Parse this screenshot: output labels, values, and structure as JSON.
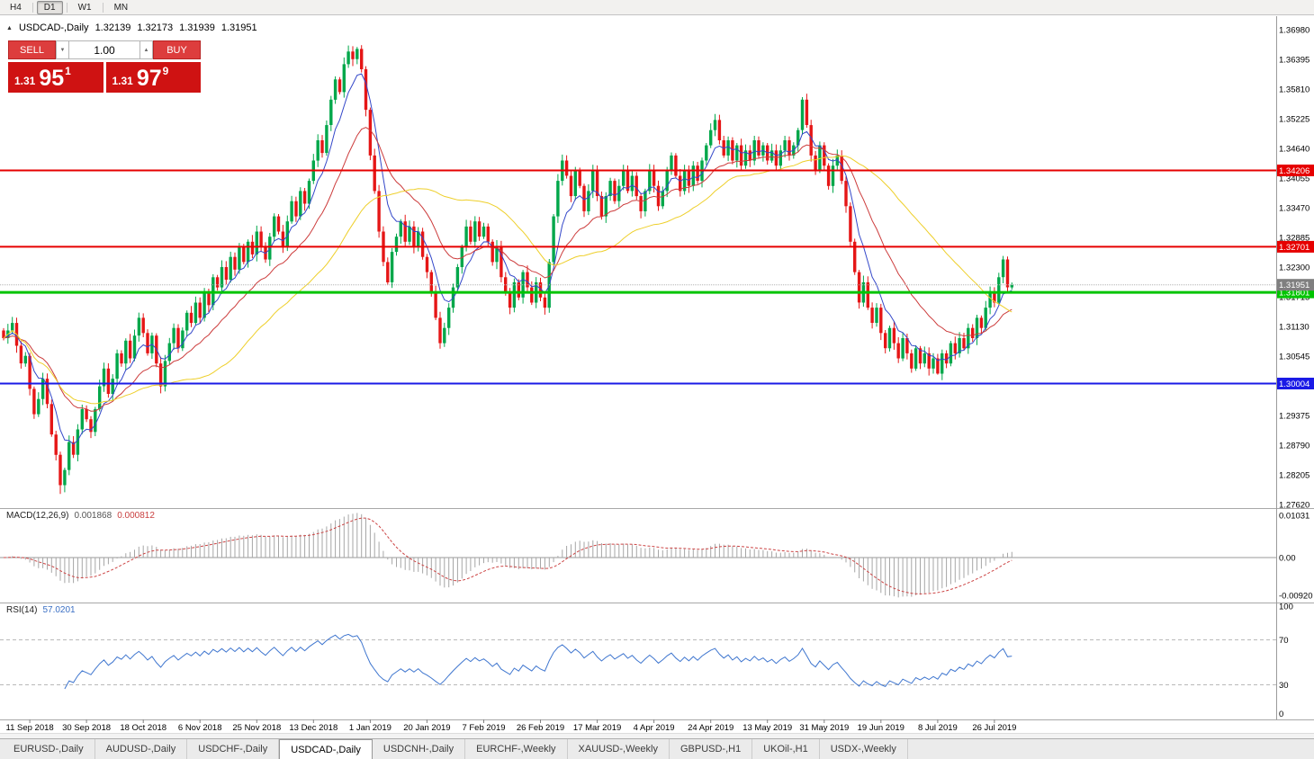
{
  "window": {
    "timeframes": [
      "H4",
      "D1",
      "W1",
      "MN"
    ],
    "active_timeframe": "D1"
  },
  "chart_header": {
    "symbol": "USDCAD-,Daily",
    "ohlc": {
      "open": "1.32139",
      "high": "1.32173",
      "low": "1.31939",
      "close": "1.31951"
    }
  },
  "trade_panel": {
    "sell_label": "SELL",
    "buy_label": "BUY",
    "volume": "1.00",
    "bid": {
      "big": "1.31",
      "pips": "95",
      "sup": "1"
    },
    "ask": {
      "big": "1.31",
      "pips": "97",
      "sup": "9"
    }
  },
  "tabs": {
    "items": [
      {
        "label": "EURUSD-,Daily",
        "active": false
      },
      {
        "label": "AUDUSD-,Daily",
        "active": false
      },
      {
        "label": "USDCHF-,Daily",
        "active": false
      },
      {
        "label": "USDCAD-,Daily",
        "active": true
      },
      {
        "label": "USDCNH-,Daily",
        "active": false
      },
      {
        "label": "EURCHF-,Weekly",
        "active": false
      },
      {
        "label": "XAUUSD-,Weekly",
        "active": false
      },
      {
        "label": "GBPUSD-,H1",
        "active": false
      },
      {
        "label": "UKOil-,H1",
        "active": false
      },
      {
        "label": "USDX-,Weekly",
        "active": false
      }
    ]
  },
  "chart_data": {
    "type": "candlestick",
    "symbol": "USDCAD-",
    "timeframe": "Daily",
    "price_axis": {
      "max": 1.3698,
      "min": 1.2762,
      "step": 0.00585,
      "labels": [
        "1.36980",
        "1.36395",
        "1.35810",
        "1.35225",
        "1.34640",
        "1.34055",
        "1.33470",
        "1.32885",
        "1.32300",
        "1.31715",
        "1.31130",
        "1.30545",
        "1.29960",
        "1.29375",
        "1.28790",
        "1.28205",
        "1.27620"
      ]
    },
    "x_labels": [
      {
        "i": 6,
        "t": "11 Sep 2018"
      },
      {
        "i": 19,
        "t": "30 Sep 2018"
      },
      {
        "i": 32,
        "t": "18 Oct 2018"
      },
      {
        "i": 45,
        "t": "6 Nov 2018"
      },
      {
        "i": 58,
        "t": "25 Nov 2018"
      },
      {
        "i": 71,
        "t": "13 Dec 2018"
      },
      {
        "i": 84,
        "t": "1 Jan 2019"
      },
      {
        "i": 97,
        "t": "20 Jan 2019"
      },
      {
        "i": 110,
        "t": "7 Feb 2019"
      },
      {
        "i": 123,
        "t": "26 Feb 2019"
      },
      {
        "i": 136,
        "t": "17 Mar 2019"
      },
      {
        "i": 149,
        "t": "4 Apr 2019"
      },
      {
        "i": 162,
        "t": "24 Apr 2019"
      },
      {
        "i": 175,
        "t": "13 May 2019"
      },
      {
        "i": 188,
        "t": "31 May 2019"
      },
      {
        "i": 201,
        "t": "19 Jun 2019"
      },
      {
        "i": 214,
        "t": "8 Jul 2019"
      },
      {
        "i": 227,
        "t": "26 Jul 2019"
      }
    ],
    "first_open": 1.3105,
    "closes": [
      1.309,
      1.3105,
      1.312,
      1.3075,
      1.304,
      1.3055,
      1.299,
      1.294,
      1.297,
      1.301,
      1.296,
      1.29,
      1.286,
      1.28,
      1.283,
      1.2885,
      1.286,
      1.291,
      1.295,
      1.293,
      1.2905,
      1.295,
      1.2995,
      1.303,
      1.298,
      1.301,
      1.306,
      1.304,
      1.3085,
      1.305,
      1.3095,
      1.313,
      1.31,
      1.306,
      1.3095,
      1.304,
      1.2995,
      1.3045,
      1.308,
      1.311,
      1.307,
      1.3105,
      1.314,
      1.312,
      1.316,
      1.313,
      1.318,
      1.3155,
      1.321,
      1.319,
      1.323,
      1.3205,
      1.325,
      1.3225,
      1.327,
      1.324,
      1.328,
      1.3255,
      1.33,
      1.327,
      1.3245,
      1.329,
      1.333,
      1.33,
      1.327,
      1.332,
      1.336,
      1.333,
      1.338,
      1.3355,
      1.34,
      1.344,
      1.348,
      1.3455,
      1.351,
      1.356,
      1.36,
      1.3575,
      1.363,
      1.3655,
      1.364,
      1.366,
      1.362,
      1.354,
      1.345,
      1.338,
      1.33,
      1.324,
      1.32,
      1.326,
      1.329,
      1.332,
      1.328,
      1.331,
      1.327,
      1.33,
      1.325,
      1.322,
      1.318,
      1.313,
      1.308,
      1.311,
      1.315,
      1.319,
      1.323,
      1.327,
      1.331,
      1.328,
      1.332,
      1.329,
      1.331,
      1.328,
      1.324,
      1.327,
      1.321,
      1.318,
      1.315,
      1.32,
      1.317,
      1.322,
      1.319,
      1.316,
      1.32,
      1.317,
      1.315,
      1.324,
      1.333,
      1.34,
      1.344,
      1.341,
      1.337,
      1.342,
      1.339,
      1.334,
      1.338,
      1.342,
      1.337,
      1.333,
      1.337,
      1.34,
      1.336,
      1.339,
      1.342,
      1.338,
      1.341,
      1.337,
      1.334,
      1.338,
      1.342,
      1.339,
      1.335,
      1.338,
      1.342,
      1.345,
      1.341,
      1.338,
      1.342,
      1.339,
      1.343,
      1.34,
      1.344,
      1.347,
      1.35,
      1.352,
      1.348,
      1.345,
      1.348,
      1.344,
      1.347,
      1.343,
      1.346,
      1.344,
      1.348,
      1.345,
      1.347,
      1.344,
      1.346,
      1.343,
      1.346,
      1.348,
      1.345,
      1.347,
      1.35,
      1.356,
      1.351,
      1.345,
      1.342,
      1.347,
      1.343,
      1.339,
      1.343,
      1.345,
      1.34,
      1.335,
      1.328,
      1.322,
      1.316,
      1.32,
      1.315,
      1.312,
      1.315,
      1.31,
      1.307,
      1.311,
      1.308,
      1.305,
      1.309,
      1.306,
      1.303,
      1.307,
      1.304,
      1.306,
      1.303,
      1.305,
      1.302,
      1.306,
      1.304,
      1.308,
      1.306,
      1.309,
      1.307,
      1.311,
      1.309,
      1.313,
      1.311,
      1.315,
      1.318,
      1.316,
      1.321,
      1.3245,
      1.319,
      1.31951
    ],
    "default_wick": 0.0013,
    "wick_overrides": {
      "13": {
        "l": 1.2783
      },
      "81": {
        "h": 1.3664
      },
      "100": {
        "l": 1.3069
      },
      "183": {
        "h": 1.3565
      },
      "214": {
        "l": 1.3018
      },
      "229": {
        "h": 1.3252
      }
    },
    "up_color": "#00A74A",
    "down_color": "#E51616",
    "ma": [
      {
        "type": "ema",
        "period": 7,
        "color": "#3347c9"
      },
      {
        "type": "ema",
        "period": 20,
        "color": "#cc3b3b"
      },
      {
        "type": "sma",
        "period": 42,
        "color": "#eecf2a"
      }
    ],
    "hlines": [
      {
        "value": 1.34206,
        "label": "1.34206",
        "color": "#e60000",
        "width": 2
      },
      {
        "value": 1.32701,
        "label": "1.32701",
        "color": "#e60000",
        "width": 2
      },
      {
        "value": 1.31801,
        "label": "1.31801",
        "color": "#00c400",
        "width": 3
      },
      {
        "value": 1.30004,
        "label": "1.30004",
        "color": "#1a1ae6",
        "width": 2
      }
    ],
    "current_price": {
      "value": 1.31951,
      "label": "1.31951",
      "line_color": "#b3b3b3",
      "badge_color": "#7f7f7f"
    },
    "macd": {
      "name": "MACD(12,26,9)",
      "value_main": "0.001868",
      "value_signal": "0.000812",
      "fast": 12,
      "slow": 26,
      "signal": 9,
      "hist_color": "#a6a6a6",
      "signal_color": "#cc4444",
      "axis_labels": [
        {
          "v": 0.01031,
          "t": "0.01031"
        },
        {
          "v": 0,
          "t": "0.00"
        },
        {
          "v": -0.0092,
          "t": "-0.00920"
        }
      ]
    },
    "rsi": {
      "name": "RSI(14)",
      "value": "57.0201",
      "period": 14,
      "line_color": "#3f76cf",
      "levels": [
        {
          "v": 100,
          "t": "100"
        },
        {
          "v": 70,
          "t": "70"
        },
        {
          "v": 30,
          "t": "30"
        },
        {
          "v": 0,
          "t": "0"
        }
      ],
      "level_lines": [
        70,
        30
      ]
    }
  }
}
